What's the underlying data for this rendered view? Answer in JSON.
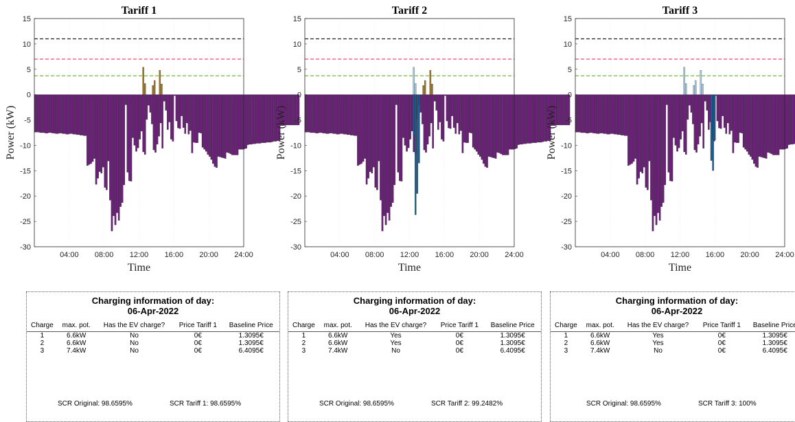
{
  "chart_data": [
    {
      "type": "bar",
      "title": "Tariff 1",
      "xlabel": "Time",
      "ylabel": "Power (kW)",
      "xlim": [
        0,
        24
      ],
      "ylim": [
        -30,
        15
      ],
      "x_ticks": [
        "04:00",
        "08:00",
        "12:00",
        "16:00",
        "20:00",
        "24:00"
      ],
      "y_ticks": [
        "15",
        "10",
        "5",
        "0",
        "-5",
        "-10",
        "-15",
        "-20",
        "-25",
        "-30"
      ],
      "reference_lines": [
        {
          "value": 11,
          "color": "#222222"
        },
        {
          "value": 7,
          "color": "#d9506e"
        },
        {
          "value": 3.7,
          "color": "#7cb342"
        }
      ],
      "highlights": [
        {
          "color": "#a07a2c",
          "points": [
            [
              12.4,
              5.4
            ],
            [
              12.6,
              2.2
            ],
            [
              13.5,
              1.8
            ],
            [
              13.7,
              2.8
            ],
            [
              14.3,
              4.8
            ],
            [
              14.5,
              2.1
            ]
          ]
        }
      ],
      "grid": true
    },
    {
      "type": "bar",
      "title": "Tariff 2",
      "xlabel": "Time",
      "ylabel": "Power (kW)",
      "xlim": [
        0,
        24
      ],
      "ylim": [
        -30,
        15
      ],
      "x_ticks": [
        "04:00",
        "08:00",
        "12:00",
        "16:00",
        "20:00",
        "24:00"
      ],
      "y_ticks": [
        "15",
        "10",
        "5",
        "0",
        "-5",
        "-10",
        "-15",
        "-20",
        "-25",
        "-30"
      ],
      "reference_lines": [
        {
          "value": 11,
          "color": "#222222"
        },
        {
          "value": 7,
          "color": "#d9506e"
        },
        {
          "value": 3.7,
          "color": "#7cb342"
        }
      ],
      "highlights": [
        {
          "color": "#a9cbe2",
          "points": [
            [
              12.4,
              5.4
            ],
            [
              12.6,
              2.2
            ]
          ]
        },
        {
          "color": "#1f5f91",
          "points": [
            [
              12.4,
              -8
            ],
            [
              12.6,
              -23.7
            ],
            [
              12.8,
              -19.5
            ],
            [
              13.0,
              -13.5
            ]
          ]
        },
        {
          "color": "#a07a2c",
          "points": [
            [
              13.5,
              1.8
            ],
            [
              13.7,
              2.8
            ],
            [
              14.3,
              4.8
            ],
            [
              14.5,
              2.1
            ]
          ]
        }
      ],
      "grid": true
    },
    {
      "type": "bar",
      "title": "Tariff 3",
      "xlabel": "Time",
      "ylabel": "Power (kW)",
      "xlim": [
        0,
        24
      ],
      "ylim": [
        -30,
        15
      ],
      "x_ticks": [
        "04:00",
        "08:00",
        "12:00",
        "16:00",
        "20:00",
        "24:00"
      ],
      "y_ticks": [
        "15",
        "10",
        "5",
        "0",
        "-5",
        "-10",
        "-15",
        "-20",
        "-25",
        "-30"
      ],
      "reference_lines": [
        {
          "value": 11,
          "color": "#222222"
        },
        {
          "value": 7,
          "color": "#d9506e"
        },
        {
          "value": 3.7,
          "color": "#7cb342"
        }
      ],
      "highlights": [
        {
          "color": "#a9cbe2",
          "points": [
            [
              12.4,
              5.4
            ],
            [
              12.6,
              2.2
            ],
            [
              13.5,
              1.8
            ],
            [
              13.7,
              2.8
            ],
            [
              14.3,
              4.8
            ],
            [
              14.5,
              2.1
            ]
          ]
        },
        {
          "color": "#1f5f91",
          "points": [
            [
              15.5,
              -13.0
            ],
            [
              15.7,
              -15.0
            ],
            [
              15.9,
              -9.0
            ]
          ]
        }
      ],
      "grid": true
    }
  ],
  "baseline": {
    "color": "#6b2178",
    "bin_hours": 0.2,
    "values": [
      -7.4,
      -7.4,
      -7.4,
      -7.5,
      -7.5,
      -7.5,
      -7.6,
      -7.6,
      -7.5,
      -7.5,
      -7.6,
      -7.6,
      -7.7,
      -7.7,
      -7.6,
      -7.6,
      -7.7,
      -7.7,
      -7.8,
      -7.8,
      -7.7,
      -7.7,
      -7.8,
      -7.8,
      -7.9,
      -7.9,
      -8,
      -8,
      -8.1,
      -8.1,
      -14,
      -13.8,
      -13.6,
      -13.2,
      -12.6,
      -17.7,
      -16.5,
      -15.2,
      -15.5,
      -14.3,
      -18.3,
      -18.8,
      -13.1,
      -20.8,
      -26.9,
      -23.9,
      -25.7,
      -23.3,
      -24.8,
      -22.1,
      -21.3,
      -17.8,
      -2,
      -15.3,
      -17,
      -17.1,
      -8.5,
      -10,
      -11.2,
      -10.5,
      -8.8,
      -7.2,
      -11.3,
      -11.8,
      -4.9,
      -2.1,
      -3.5,
      -5.8,
      -10.9,
      -11.4,
      -9.8,
      -8.2,
      -5.6,
      -10.6,
      -1.3,
      -3.1,
      -6.9,
      -5.4,
      -8.8,
      -9.2,
      -0.2,
      -5.2,
      -6.6,
      -6.7,
      -4.2,
      -6.5,
      -7.7,
      -5.6,
      -7.8,
      -7.1,
      -11.5,
      -9.4,
      -9.5,
      -9.5,
      -7.5,
      -7.6,
      -10.4,
      -10.8,
      -11.2,
      -11.8,
      -12.2,
      -12.8,
      -13.6,
      -14.2,
      -14.4,
      -12.2,
      -12.3,
      -12.4,
      -12.5,
      -12.6,
      -11.4,
      -11.5,
      -11.7,
      -11.9,
      -11.9,
      -11.9,
      -11.9,
      -10.8,
      -10.8,
      -10.8,
      -10.7,
      -10.6,
      -9.9,
      -9.8,
      -9.8,
      -9.7,
      -9.7,
      -9.6,
      -9.6,
      -9.6,
      -9.5,
      -9.5,
      -9.5,
      -9.4,
      -9.4,
      -9.4,
      -9.3,
      -9.2,
      -9.2,
      -9.1,
      -9.1,
      -6.1,
      -6.1,
      -6.1,
      -6.0,
      -6.0,
      -6.0,
      -6.0,
      -6.0,
      -6.0,
      -6.0,
      -6.0
    ]
  },
  "panels": [
    {
      "title": "Charging information of day:",
      "date": "06-Apr-2022",
      "headers": [
        "Charge",
        "max. pot.",
        "Has the EV charge?",
        "Price Tariff 1",
        "Baseline Price"
      ],
      "rows": [
        [
          "1",
          "6.6kW",
          "No",
          "0€",
          "1.3095€"
        ],
        [
          "2",
          "6.6kW",
          "No",
          "0€",
          "1.3095€"
        ],
        [
          "3",
          "7.4kW",
          "No",
          "0€",
          "6.4095€"
        ]
      ],
      "scr_original": "SCR Original: 98.6595%",
      "scr_tariff": "SCR Tariff 1: 98.6595%"
    },
    {
      "title": "Charging information of day:",
      "date": "06-Apr-2022",
      "headers": [
        "Charge",
        "max. pot.",
        "Has the EV charge?",
        "Price Tariff 1",
        "Baseline Price"
      ],
      "rows": [
        [
          "1",
          "6.6kW",
          "Yes",
          "0€",
          "1.3095€"
        ],
        [
          "2",
          "6.6kW",
          "Yes",
          "0€",
          "1.3095€"
        ],
        [
          "3",
          "7.4kW",
          "No",
          "0€",
          "6.4095€"
        ]
      ],
      "scr_original": "SCR Original: 98.6595%",
      "scr_tariff": "SCR Tariff 2: 99.2482%"
    },
    {
      "title": "Charging information of day:",
      "date": "06-Apr-2022",
      "headers": [
        "Charge",
        "max. pot.",
        "Has the EV charge?",
        "Price Tariff 1",
        "Baseline Price"
      ],
      "rows": [
        [
          "1",
          "6.6kW",
          "Yes",
          "0€",
          "1.3095€"
        ],
        [
          "2",
          "6.6kW",
          "Yes",
          "0€",
          "1.3095€"
        ],
        [
          "3",
          "7.4kW",
          "No",
          "0€",
          "6.4095€"
        ]
      ],
      "scr_original": "SCR Original: 98.6595%",
      "scr_tariff": "SCR Tariff 3: 100%"
    }
  ]
}
